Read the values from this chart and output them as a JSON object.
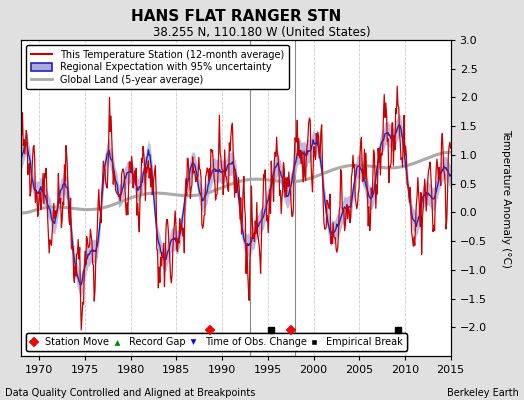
{
  "title": "HANS FLAT RANGER STN",
  "subtitle": "38.255 N, 110.180 W (United States)",
  "ylabel": "Temperature Anomaly (°C)",
  "xlabel_note": "Data Quality Controlled and Aligned at Breakpoints",
  "credit": "Berkeley Earth",
  "xlim": [
    1968,
    2015
  ],
  "ylim": [
    -2.5,
    3.0
  ],
  "yticks": [
    -2,
    -1.5,
    -1,
    -0.5,
    0,
    0.5,
    1,
    1.5,
    2,
    2.5,
    3
  ],
  "xticks": [
    1970,
    1975,
    1980,
    1985,
    1990,
    1995,
    2000,
    2005,
    2010,
    2015
  ],
  "station_color": "#CC0000",
  "regional_color": "#2222BB",
  "regional_uncertainty_color": "#AAAADD",
  "global_color": "#AAAAAA",
  "plot_bg_color": "#FFFFFF",
  "fig_bg_color": "#E0E0E0",
  "station_moves": [
    1988.7,
    1997.5
  ],
  "obs_changes": [],
  "empirical_breaks": [
    1995.3,
    2009.2
  ],
  "vertical_lines": [
    1993.0,
    1998.0
  ],
  "legend_labels": [
    "This Temperature Station (12-month average)",
    "Regional Expectation with 95% uncertainty",
    "Global Land (5-year average)"
  ]
}
